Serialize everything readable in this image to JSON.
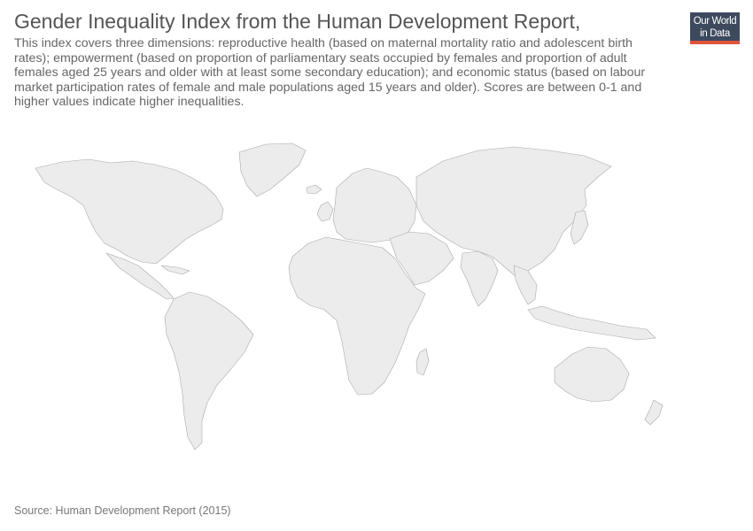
{
  "header": {
    "title": "Gender Inequality Index from the Human Development Report,",
    "subtitle": "This index covers three dimensions: reproductive health (based on maternal mortality ratio and adolescent birth rates); empowerment (based on proportion of parliamentary seats occupied by females and proportion of adult females aged 25 years and older with at least some secondary education); and economic status (based on labour market participation rates of female and male populations aged 15 years and older). Scores are between 0-1 and higher values indicate higher inequalities."
  },
  "logo": {
    "line1": "Our World",
    "line2": "in Data"
  },
  "footer": {
    "source": "Source: Human Development Report (2015)"
  },
  "map": {
    "fill_color": "#ececec",
    "border_color": "#a9a9a9",
    "regions": [
      "north-america",
      "greenland",
      "central-america",
      "caribbean",
      "south-america",
      "europe",
      "africa",
      "madagascar",
      "asia",
      "middle-east",
      "india",
      "japan",
      "southeast-asia-islands",
      "australia",
      "new-zealand",
      "uk",
      "iceland"
    ]
  }
}
